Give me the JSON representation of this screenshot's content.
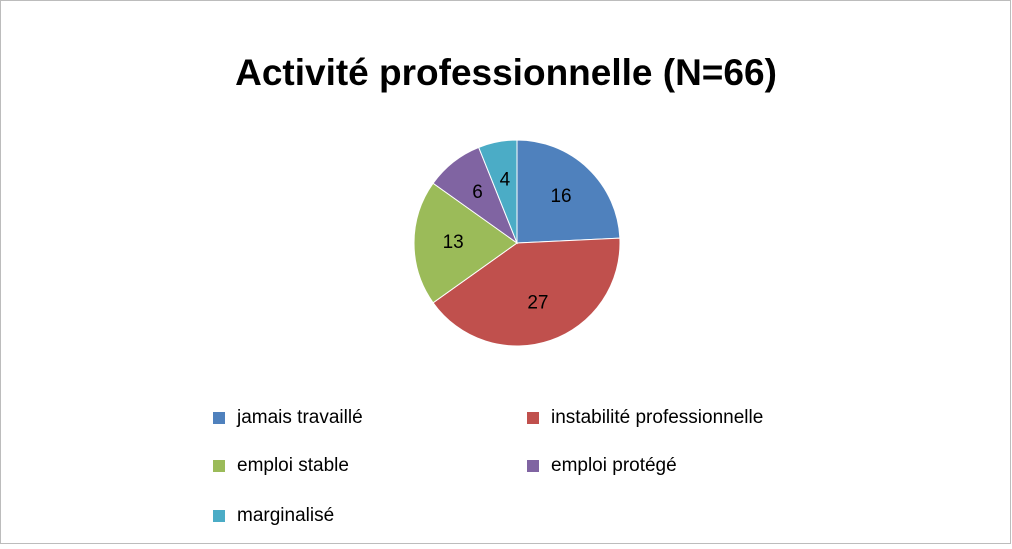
{
  "chart_data": {
    "type": "pie",
    "title": "Activité professionnelle (N=66)",
    "categories": [
      "jamais travaillé",
      "instabilité professionnelle",
      "emploi stable",
      "emploi protégé",
      "marginalisé"
    ],
    "values": [
      16,
      27,
      13,
      6,
      4
    ],
    "colors": [
      "#4f81bd",
      "#c0504d",
      "#9bbb59",
      "#8064a2",
      "#4bacc6"
    ],
    "legend": "bottom"
  }
}
